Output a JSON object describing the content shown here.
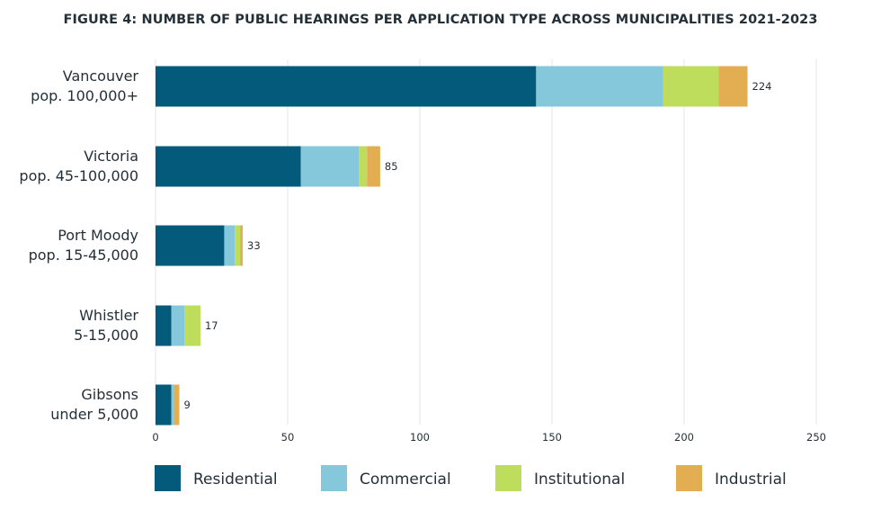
{
  "chart_data": {
    "type": "bar",
    "orientation": "horizontal",
    "stacked": true,
    "title": "FIGURE 4: NUMBER OF PUBLIC HEARINGS PER APPLICATION TYPE ACROSS MUNICIPALITIES 2021-2023",
    "categories": [
      [
        "Vancouver",
        "pop. 100,000+"
      ],
      [
        "Victoria",
        "pop. 45-100,000"
      ],
      [
        "Port Moody",
        "pop. 15-45,000"
      ],
      [
        "Whistler",
        "5-15,000"
      ],
      [
        "Gibsons",
        "under 5,000"
      ]
    ],
    "series": [
      {
        "name": "Residential",
        "color": "#045a7a",
        "values": [
          144,
          55,
          26,
          6,
          6
        ]
      },
      {
        "name": "Commercial",
        "color": "#85c7db",
        "values": [
          48,
          22,
          4,
          5,
          1
        ]
      },
      {
        "name": "Institutional",
        "color": "#bedd5c",
        "values": [
          21,
          3,
          2,
          6,
          0
        ]
      },
      {
        "name": "Industrial",
        "color": "#e2ae51",
        "values": [
          11,
          5,
          1,
          0,
          2
        ]
      }
    ],
    "totals": [
      "224",
      "85",
      "33",
      "17",
      "9"
    ],
    "xlim": [
      0,
      250
    ],
    "xticks": [
      "0",
      "50",
      "100",
      "150",
      "200",
      "250"
    ],
    "xtick_values": [
      0,
      50,
      100,
      150,
      200,
      250
    ],
    "grid": true,
    "legend_position": "bottom"
  }
}
